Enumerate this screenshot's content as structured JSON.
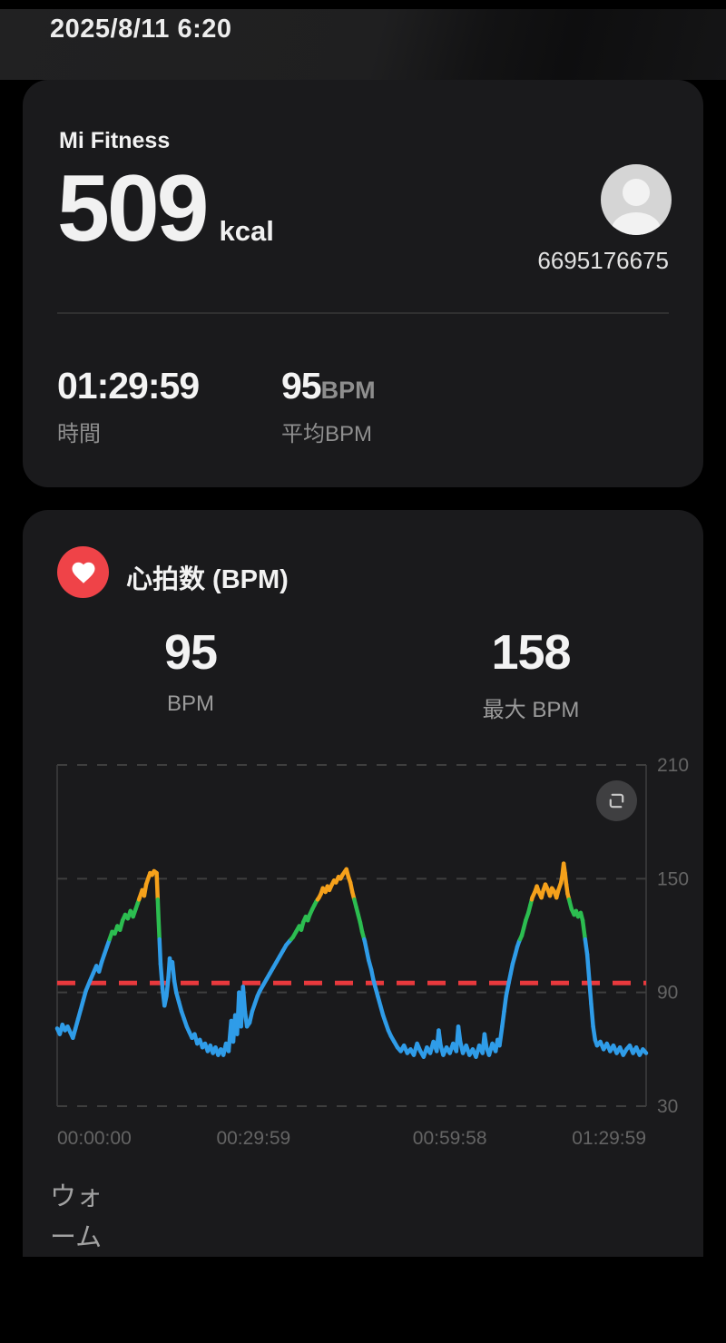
{
  "header": {
    "datetime": "2025/8/11 6:20"
  },
  "summary_card": {
    "app_name": "Mi Fitness",
    "calories_value": "509",
    "calories_unit": "kcal",
    "user_id": "6695176675",
    "stats": [
      {
        "value": "01:29:59",
        "label": "時間"
      },
      {
        "value": "95",
        "value_suffix": "BPM",
        "label": "平均BPM"
      }
    ]
  },
  "heart_rate_card": {
    "title": "心拍数 (BPM)",
    "stats": [
      {
        "value": "95",
        "label": "BPM"
      },
      {
        "value": "158",
        "label": "最大 BPM"
      }
    ],
    "footer_truncated_label": "ウォーム"
  },
  "icons": {
    "heart": "heart-icon",
    "expand": "expand-icon",
    "avatar": "person-icon"
  },
  "colors": {
    "card_bg": "#1a1a1c",
    "heart_badge": "#ef4348",
    "avatar_bg": "#d5d5d5",
    "primary_text": "#f2f2f2",
    "secondary_text": "#8f8f8f"
  },
  "chart_data": {
    "type": "line",
    "title": "心拍数 (BPM)",
    "xlim": [
      0,
      90
    ],
    "x_unit": "minutes",
    "ylim": [
      30,
      210
    ],
    "y_gridlines": [
      30,
      90,
      150,
      210
    ],
    "y_tick_labels": [
      "30",
      "90",
      "150",
      "210"
    ],
    "grid_style": "dashed",
    "grid_color": "#3e3e3e",
    "tick_color": "#646464",
    "legend": "none",
    "avg_line": {
      "value": 95,
      "color": "#e8393d",
      "style": "dashed"
    },
    "x_ticks": [
      {
        "t": 0,
        "label": "00:00:00"
      },
      {
        "t": 30,
        "label": "00:29:59"
      },
      {
        "t": 60,
        "label": "00:59:58"
      },
      {
        "t": 90,
        "label": "01:29:59"
      }
    ],
    "zones": [
      {
        "name": "light-blue",
        "max_bpm": 118,
        "color": "#2f9ce8"
      },
      {
        "name": "aerobic-green",
        "max_bpm": 139,
        "color": "#2cbd50"
      },
      {
        "name": "intense-orange",
        "max_bpm": 210,
        "color": "#f5a11b"
      }
    ],
    "series": [
      {
        "name": "heart_rate_bpm",
        "points": [
          [
            0,
            71
          ],
          [
            0.4,
            68
          ],
          [
            0.8,
            73
          ],
          [
            1.2,
            70
          ],
          [
            1.6,
            72
          ],
          [
            2,
            69
          ],
          [
            2.4,
            66
          ],
          [
            2.8,
            71
          ],
          [
            3.2,
            76
          ],
          [
            3.6,
            81
          ],
          [
            4,
            86
          ],
          [
            4.4,
            91
          ],
          [
            5,
            96
          ],
          [
            5.5,
            100
          ],
          [
            6,
            104
          ],
          [
            6.4,
            101
          ],
          [
            6.8,
            106
          ],
          [
            7.2,
            110
          ],
          [
            7.6,
            114
          ],
          [
            8,
            118
          ],
          [
            8.4,
            122
          ],
          [
            8.8,
            121
          ],
          [
            9.2,
            125
          ],
          [
            9.6,
            123
          ],
          [
            10,
            128
          ],
          [
            10.4,
            131
          ],
          [
            10.8,
            129
          ],
          [
            11.2,
            133
          ],
          [
            11.6,
            130
          ],
          [
            12,
            134
          ],
          [
            12.3,
            137
          ],
          [
            12.6,
            140
          ],
          [
            13,
            144
          ],
          [
            13.3,
            141
          ],
          [
            13.6,
            147
          ],
          [
            14,
            151
          ],
          [
            14.2,
            153
          ],
          [
            14.5,
            152
          ],
          [
            14.8,
            154
          ],
          [
            15.2,
            153
          ],
          [
            15.5,
            128
          ],
          [
            15.8,
            105
          ],
          [
            16.1,
            92
          ],
          [
            16.4,
            83
          ],
          [
            16.7,
            88
          ],
          [
            17,
            98
          ],
          [
            17.2,
            108
          ],
          [
            17.4,
            103
          ],
          [
            17.6,
            106
          ],
          [
            17.9,
            96
          ],
          [
            18.2,
            90
          ],
          [
            18.6,
            85
          ],
          [
            19,
            80
          ],
          [
            19.4,
            76
          ],
          [
            19.8,
            72
          ],
          [
            20.2,
            69
          ],
          [
            20.6,
            66
          ],
          [
            21,
            68
          ],
          [
            21.4,
            63
          ],
          [
            21.8,
            65
          ],
          [
            22.2,
            61
          ],
          [
            22.6,
            63
          ],
          [
            23,
            59
          ],
          [
            23.4,
            62
          ],
          [
            23.8,
            58
          ],
          [
            24.2,
            61
          ],
          [
            24.6,
            57
          ],
          [
            25,
            60
          ],
          [
            25.4,
            57
          ],
          [
            25.8,
            63
          ],
          [
            26.2,
            59
          ],
          [
            26.6,
            75
          ],
          [
            26.9,
            64
          ],
          [
            27.2,
            78
          ],
          [
            27.5,
            68
          ],
          [
            27.8,
            90
          ],
          [
            28.1,
            72
          ],
          [
            28.4,
            93
          ],
          [
            28.7,
            80
          ],
          [
            29,
            72
          ],
          [
            29.4,
            74
          ],
          [
            29.8,
            80
          ],
          [
            30.2,
            84
          ],
          [
            30.6,
            88
          ],
          [
            31,
            91
          ],
          [
            31.5,
            94
          ],
          [
            32,
            97
          ],
          [
            32.5,
            100
          ],
          [
            33,
            103
          ],
          [
            33.5,
            106
          ],
          [
            34,
            109
          ],
          [
            34.5,
            112
          ],
          [
            35,
            115
          ],
          [
            35.5,
            117
          ],
          [
            36,
            119
          ],
          [
            36.5,
            122
          ],
          [
            37,
            125
          ],
          [
            37.3,
            123
          ],
          [
            37.6,
            127
          ],
          [
            38,
            130
          ],
          [
            38.3,
            128
          ],
          [
            38.6,
            131
          ],
          [
            39,
            134
          ],
          [
            39.3,
            136
          ],
          [
            39.6,
            138
          ],
          [
            40,
            140
          ],
          [
            40.3,
            142
          ],
          [
            40.6,
            145
          ],
          [
            41,
            143
          ],
          [
            41.3,
            146
          ],
          [
            41.6,
            144
          ],
          [
            42,
            147
          ],
          [
            42.3,
            149
          ],
          [
            42.6,
            148
          ],
          [
            43,
            151
          ],
          [
            43.3,
            150
          ],
          [
            43.6,
            152
          ],
          [
            44,
            154
          ],
          [
            44.2,
            155
          ],
          [
            44.5,
            151
          ],
          [
            44.8,
            148
          ],
          [
            45.1,
            143
          ],
          [
            45.4,
            139
          ],
          [
            45.7,
            135
          ],
          [
            46,
            131
          ],
          [
            46.3,
            127
          ],
          [
            46.6,
            122
          ],
          [
            47,
            117
          ],
          [
            47.3,
            112
          ],
          [
            47.6,
            107
          ],
          [
            48,
            102
          ],
          [
            48.3,
            97
          ],
          [
            48.6,
            93
          ],
          [
            49,
            88
          ],
          [
            49.4,
            83
          ],
          [
            49.8,
            78
          ],
          [
            50.2,
            74
          ],
          [
            50.6,
            70
          ],
          [
            51,
            67
          ],
          [
            51.5,
            64
          ],
          [
            52,
            61
          ],
          [
            52.5,
            59
          ],
          [
            53,
            62
          ],
          [
            53.5,
            58
          ],
          [
            54,
            60
          ],
          [
            54.5,
            57
          ],
          [
            55,
            63
          ],
          [
            55.5,
            59
          ],
          [
            56,
            56
          ],
          [
            56.5,
            61
          ],
          [
            57,
            58
          ],
          [
            57.5,
            64
          ],
          [
            58,
            59
          ],
          [
            58.3,
            70
          ],
          [
            58.6,
            62
          ],
          [
            59,
            57
          ],
          [
            59.5,
            61
          ],
          [
            60,
            58
          ],
          [
            60.5,
            63
          ],
          [
            61,
            59
          ],
          [
            61.3,
            72
          ],
          [
            61.6,
            64
          ],
          [
            62,
            58
          ],
          [
            62.5,
            62
          ],
          [
            63,
            57
          ],
          [
            63.5,
            60
          ],
          [
            64,
            56
          ],
          [
            64.5,
            62
          ],
          [
            65,
            58
          ],
          [
            65.3,
            68
          ],
          [
            65.6,
            61
          ],
          [
            66,
            57
          ],
          [
            66.5,
            63
          ],
          [
            67,
            59
          ],
          [
            67.3,
            65
          ],
          [
            67.6,
            62
          ],
          [
            68,
            72
          ],
          [
            68.3,
            80
          ],
          [
            68.6,
            88
          ],
          [
            69,
            95
          ],
          [
            69.3,
            100
          ],
          [
            69.6,
            105
          ],
          [
            70,
            110
          ],
          [
            70.3,
            114
          ],
          [
            70.6,
            117
          ],
          [
            71,
            120
          ],
          [
            71.3,
            124
          ],
          [
            71.6,
            128
          ],
          [
            72,
            132
          ],
          [
            72.3,
            136
          ],
          [
            72.6,
            140
          ],
          [
            73,
            143
          ],
          [
            73.3,
            146
          ],
          [
            73.6,
            143
          ],
          [
            74,
            140
          ],
          [
            74.3,
            144
          ],
          [
            74.6,
            147
          ],
          [
            75,
            144
          ],
          [
            75.3,
            141
          ],
          [
            75.6,
            145
          ],
          [
            76,
            143
          ],
          [
            76.3,
            140
          ],
          [
            76.6,
            144
          ],
          [
            77,
            148
          ],
          [
            77.2,
            152
          ],
          [
            77.4,
            158
          ],
          [
            77.6,
            153
          ],
          [
            77.8,
            147
          ],
          [
            78,
            142
          ],
          [
            78.3,
            138
          ],
          [
            78.6,
            134
          ],
          [
            79,
            131
          ],
          [
            79.3,
            133
          ],
          [
            79.6,
            130
          ],
          [
            80,
            132
          ],
          [
            80.3,
            128
          ],
          [
            80.6,
            120
          ],
          [
            81,
            110
          ],
          [
            81.3,
            97
          ],
          [
            81.6,
            84
          ],
          [
            81.9,
            72
          ],
          [
            82.2,
            65
          ],
          [
            82.5,
            62
          ],
          [
            83,
            64
          ],
          [
            83.5,
            60
          ],
          [
            84,
            63
          ],
          [
            84.5,
            59
          ],
          [
            85,
            62
          ],
          [
            85.5,
            58
          ],
          [
            86,
            61
          ],
          [
            86.5,
            57
          ],
          [
            87,
            60
          ],
          [
            87.5,
            62
          ],
          [
            88,
            58
          ],
          [
            88.5,
            61
          ],
          [
            89,
            57
          ],
          [
            89.5,
            60
          ],
          [
            90,
            58
          ]
        ]
      }
    ]
  }
}
